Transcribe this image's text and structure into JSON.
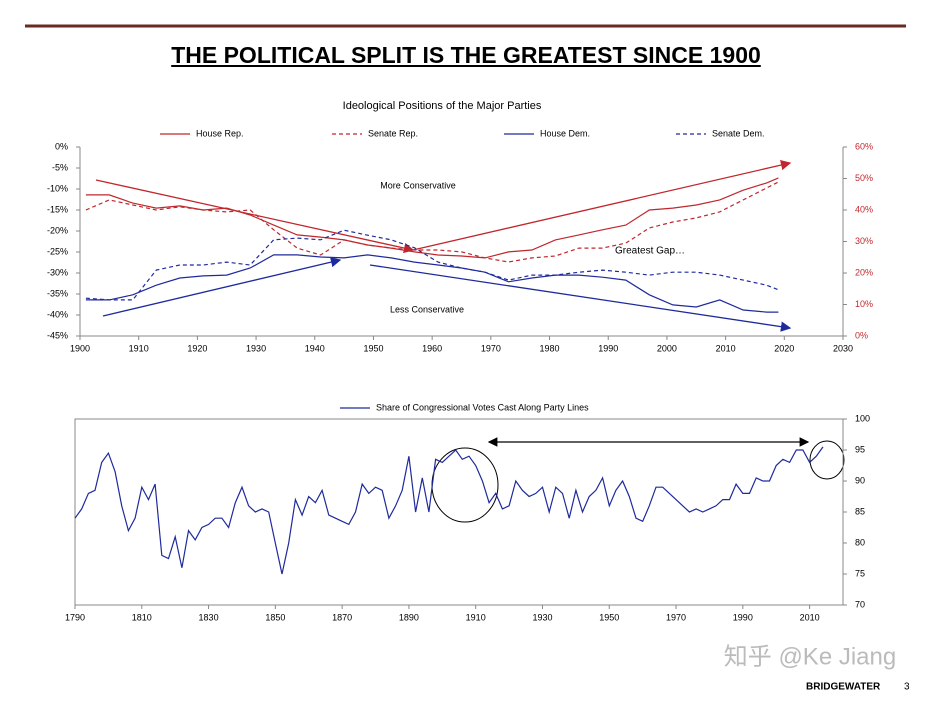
{
  "slide_title": "THE POLITICAL SPLIT IS THE GREATEST SINCE 1900",
  "chart_data": [
    {
      "type": "line",
      "title": "Ideological Positions of the Major Parties",
      "x": [
        1901,
        1905,
        1909,
        1913,
        1917,
        1921,
        1925,
        1929,
        1933,
        1937,
        1941,
        1945,
        1949,
        1953,
        1957,
        1961,
        1965,
        1969,
        1973,
        1977,
        1981,
        1985,
        1989,
        1993,
        1997,
        2001,
        2005,
        2009,
        2013,
        2017,
        2019
      ],
      "series": [
        {
          "name": "House Rep.",
          "color": "#c0272d",
          "line_style": "solid",
          "axis": "y2",
          "values": [
            44.8,
            44.8,
            42.2,
            40.6,
            41.3,
            40.0,
            40.6,
            38.4,
            35.2,
            32.1,
            31.4,
            30.5,
            28.9,
            27.9,
            26.7,
            25.7,
            25.4,
            24.8,
            26.7,
            27.3,
            30.5,
            32.1,
            33.7,
            35.2,
            40.0,
            40.6,
            41.6,
            43.2,
            46.3,
            48.6,
            50.2
          ]
        },
        {
          "name": "Senate Rep.",
          "color": "#c0272d",
          "line_style": "dashed",
          "axis": "y2",
          "values": [
            40.0,
            43.2,
            41.6,
            40.0,
            41.0,
            40.0,
            39.4,
            40.0,
            33.7,
            27.9,
            25.7,
            30.5,
            28.9,
            27.9,
            27.3,
            27.3,
            26.7,
            24.8,
            23.5,
            24.8,
            25.4,
            27.9,
            27.9,
            29.5,
            34.3,
            36.2,
            37.5,
            39.4,
            43.2,
            47.0,
            48.9
          ]
        },
        {
          "name": "House Dem.",
          "color": "#1f2a9c",
          "line_style": "solid",
          "values": [
            -36.4,
            -36.4,
            -35.2,
            -32.9,
            -31.2,
            -30.7,
            -30.5,
            -28.8,
            -25.7,
            -25.7,
            -26.2,
            -26.4,
            -25.7,
            -26.4,
            -27.4,
            -28.1,
            -28.8,
            -29.8,
            -32.1,
            -31.2,
            -30.5,
            -30.5,
            -31.0,
            -31.7,
            -35.2,
            -37.6,
            -38.1,
            -36.4,
            -38.8,
            -39.3,
            -39.3
          ]
        },
        {
          "name": "Senate Dem.",
          "color": "#1f2a9c",
          "line_style": "dashed",
          "values": [
            -36.0,
            -36.4,
            -36.4,
            -29.3,
            -28.1,
            -28.1,
            -27.4,
            -28.1,
            -22.1,
            -21.7,
            -22.1,
            -19.8,
            -21.0,
            -22.1,
            -24.0,
            -27.4,
            -28.8,
            -29.8,
            -31.7,
            -30.5,
            -30.5,
            -29.8,
            -29.3,
            -29.8,
            -30.5,
            -29.8,
            -29.8,
            -30.5,
            -31.7,
            -32.9,
            -34.0
          ]
        }
      ],
      "xlim": [
        1900,
        2030
      ],
      "xticks": [
        1900,
        1910,
        1920,
        1930,
        1940,
        1950,
        1960,
        1970,
        1980,
        1990,
        2000,
        2010,
        2020,
        2030
      ],
      "ylim": [
        -45,
        0
      ],
      "yticks": [
        {
          "value": 0,
          "label": "0%"
        },
        {
          "value": -5,
          "label": "-5%"
        },
        {
          "value": -10,
          "label": "-10%"
        },
        {
          "value": -15,
          "label": "-15%"
        },
        {
          "value": -20,
          "label": "-20%"
        },
        {
          "value": -25,
          "label": "-25%"
        },
        {
          "value": -30,
          "label": "-30%"
        },
        {
          "value": -35,
          "label": "-35%"
        },
        {
          "value": -40,
          "label": "-40%"
        },
        {
          "value": -45,
          "label": "-45%"
        }
      ],
      "y2lim": [
        0,
        60
      ],
      "y2ticks": [
        {
          "value": 0,
          "label": "0%"
        },
        {
          "value": 10,
          "label": "10%"
        },
        {
          "value": 20,
          "label": "20%"
        },
        {
          "value": 30,
          "label": "30%"
        },
        {
          "value": 40,
          "label": "40%"
        },
        {
          "value": 50,
          "label": "50%"
        },
        {
          "value": 60,
          "label": "60%"
        }
      ],
      "legend": "top",
      "annotations": [
        "More Conservative",
        "Less Conservative",
        "Greatest Gap…"
      ]
    },
    {
      "type": "line",
      "x": [
        1790,
        1792,
        1794,
        1796,
        1798,
        1800,
        1802,
        1804,
        1806,
        1808,
        1810,
        1812,
        1814,
        1816,
        1818,
        1820,
        1822,
        1824,
        1826,
        1828,
        1830,
        1832,
        1834,
        1836,
        1838,
        1840,
        1842,
        1844,
        1846,
        1848,
        1850,
        1852,
        1854,
        1856,
        1858,
        1860,
        1862,
        1864,
        1866,
        1868,
        1870,
        1872,
        1874,
        1876,
        1878,
        1880,
        1882,
        1884,
        1886,
        1888,
        1890,
        1892,
        1894,
        1896,
        1898,
        1900,
        1902,
        1904,
        1906,
        1908,
        1910,
        1912,
        1914,
        1916,
        1918,
        1920,
        1922,
        1924,
        1926,
        1928,
        1930,
        1932,
        1934,
        1936,
        1938,
        1940,
        1942,
        1944,
        1946,
        1948,
        1950,
        1952,
        1954,
        1956,
        1958,
        1960,
        1962,
        1964,
        1966,
        1968,
        1970,
        1972,
        1974,
        1976,
        1978,
        1980,
        1982,
        1984,
        1986,
        1988,
        1990,
        1992,
        1994,
        1996,
        1998,
        2000,
        2002,
        2004,
        2006,
        2008,
        2010,
        2012,
        2014
      ],
      "series": [
        {
          "name": "Share of Congressional Votes Cast Along Party Lines",
          "color": "#1f2a9c",
          "line_style": "solid",
          "values": [
            84,
            85.5,
            88,
            88.5,
            93,
            94.5,
            91.5,
            86,
            82,
            84,
            89,
            87,
            89.5,
            78,
            77.5,
            81,
            76,
            82,
            80.5,
            82.5,
            83,
            84,
            84,
            82.5,
            86.5,
            89,
            86,
            85,
            85.5,
            85,
            80,
            75,
            80,
            87,
            84.5,
            87.5,
            86.5,
            88.5,
            84.5,
            84,
            83.5,
            83,
            85,
            89.5,
            88,
            89,
            88.5,
            84,
            86,
            88.5,
            94,
            85,
            90.5,
            85,
            93.5,
            93,
            94,
            95,
            93.5,
            94,
            92.5,
            90,
            86.5,
            88,
            85.5,
            86,
            90,
            88.5,
            87.5,
            88,
            89,
            85,
            89,
            88,
            84,
            88.5,
            85,
            87.5,
            88.5,
            90.5,
            86,
            88.5,
            90,
            87.5,
            84,
            83.5,
            86,
            89,
            89,
            88,
            87,
            86,
            85,
            85.5,
            85,
            85.5,
            86,
            87,
            87,
            89.5,
            88,
            88,
            90.5,
            90,
            90,
            92.5,
            93.5,
            93,
            95,
            95,
            93,
            94,
            95.5
          ]
        }
      ],
      "xlim": [
        1790,
        2020
      ],
      "xticks": [
        1790,
        1810,
        1830,
        1850,
        1870,
        1890,
        1910,
        1930,
        1950,
        1970,
        1990,
        2010
      ],
      "ylim": [
        70,
        100
      ],
      "yticks": [
        70,
        75,
        80,
        85,
        90,
        95,
        100
      ],
      "y_axis_side": "right",
      "frame": true,
      "legend": "top"
    }
  ],
  "watermark": "知乎 @Ke Jiang",
  "brand": "BRIDGEWATER",
  "page_number": "3"
}
